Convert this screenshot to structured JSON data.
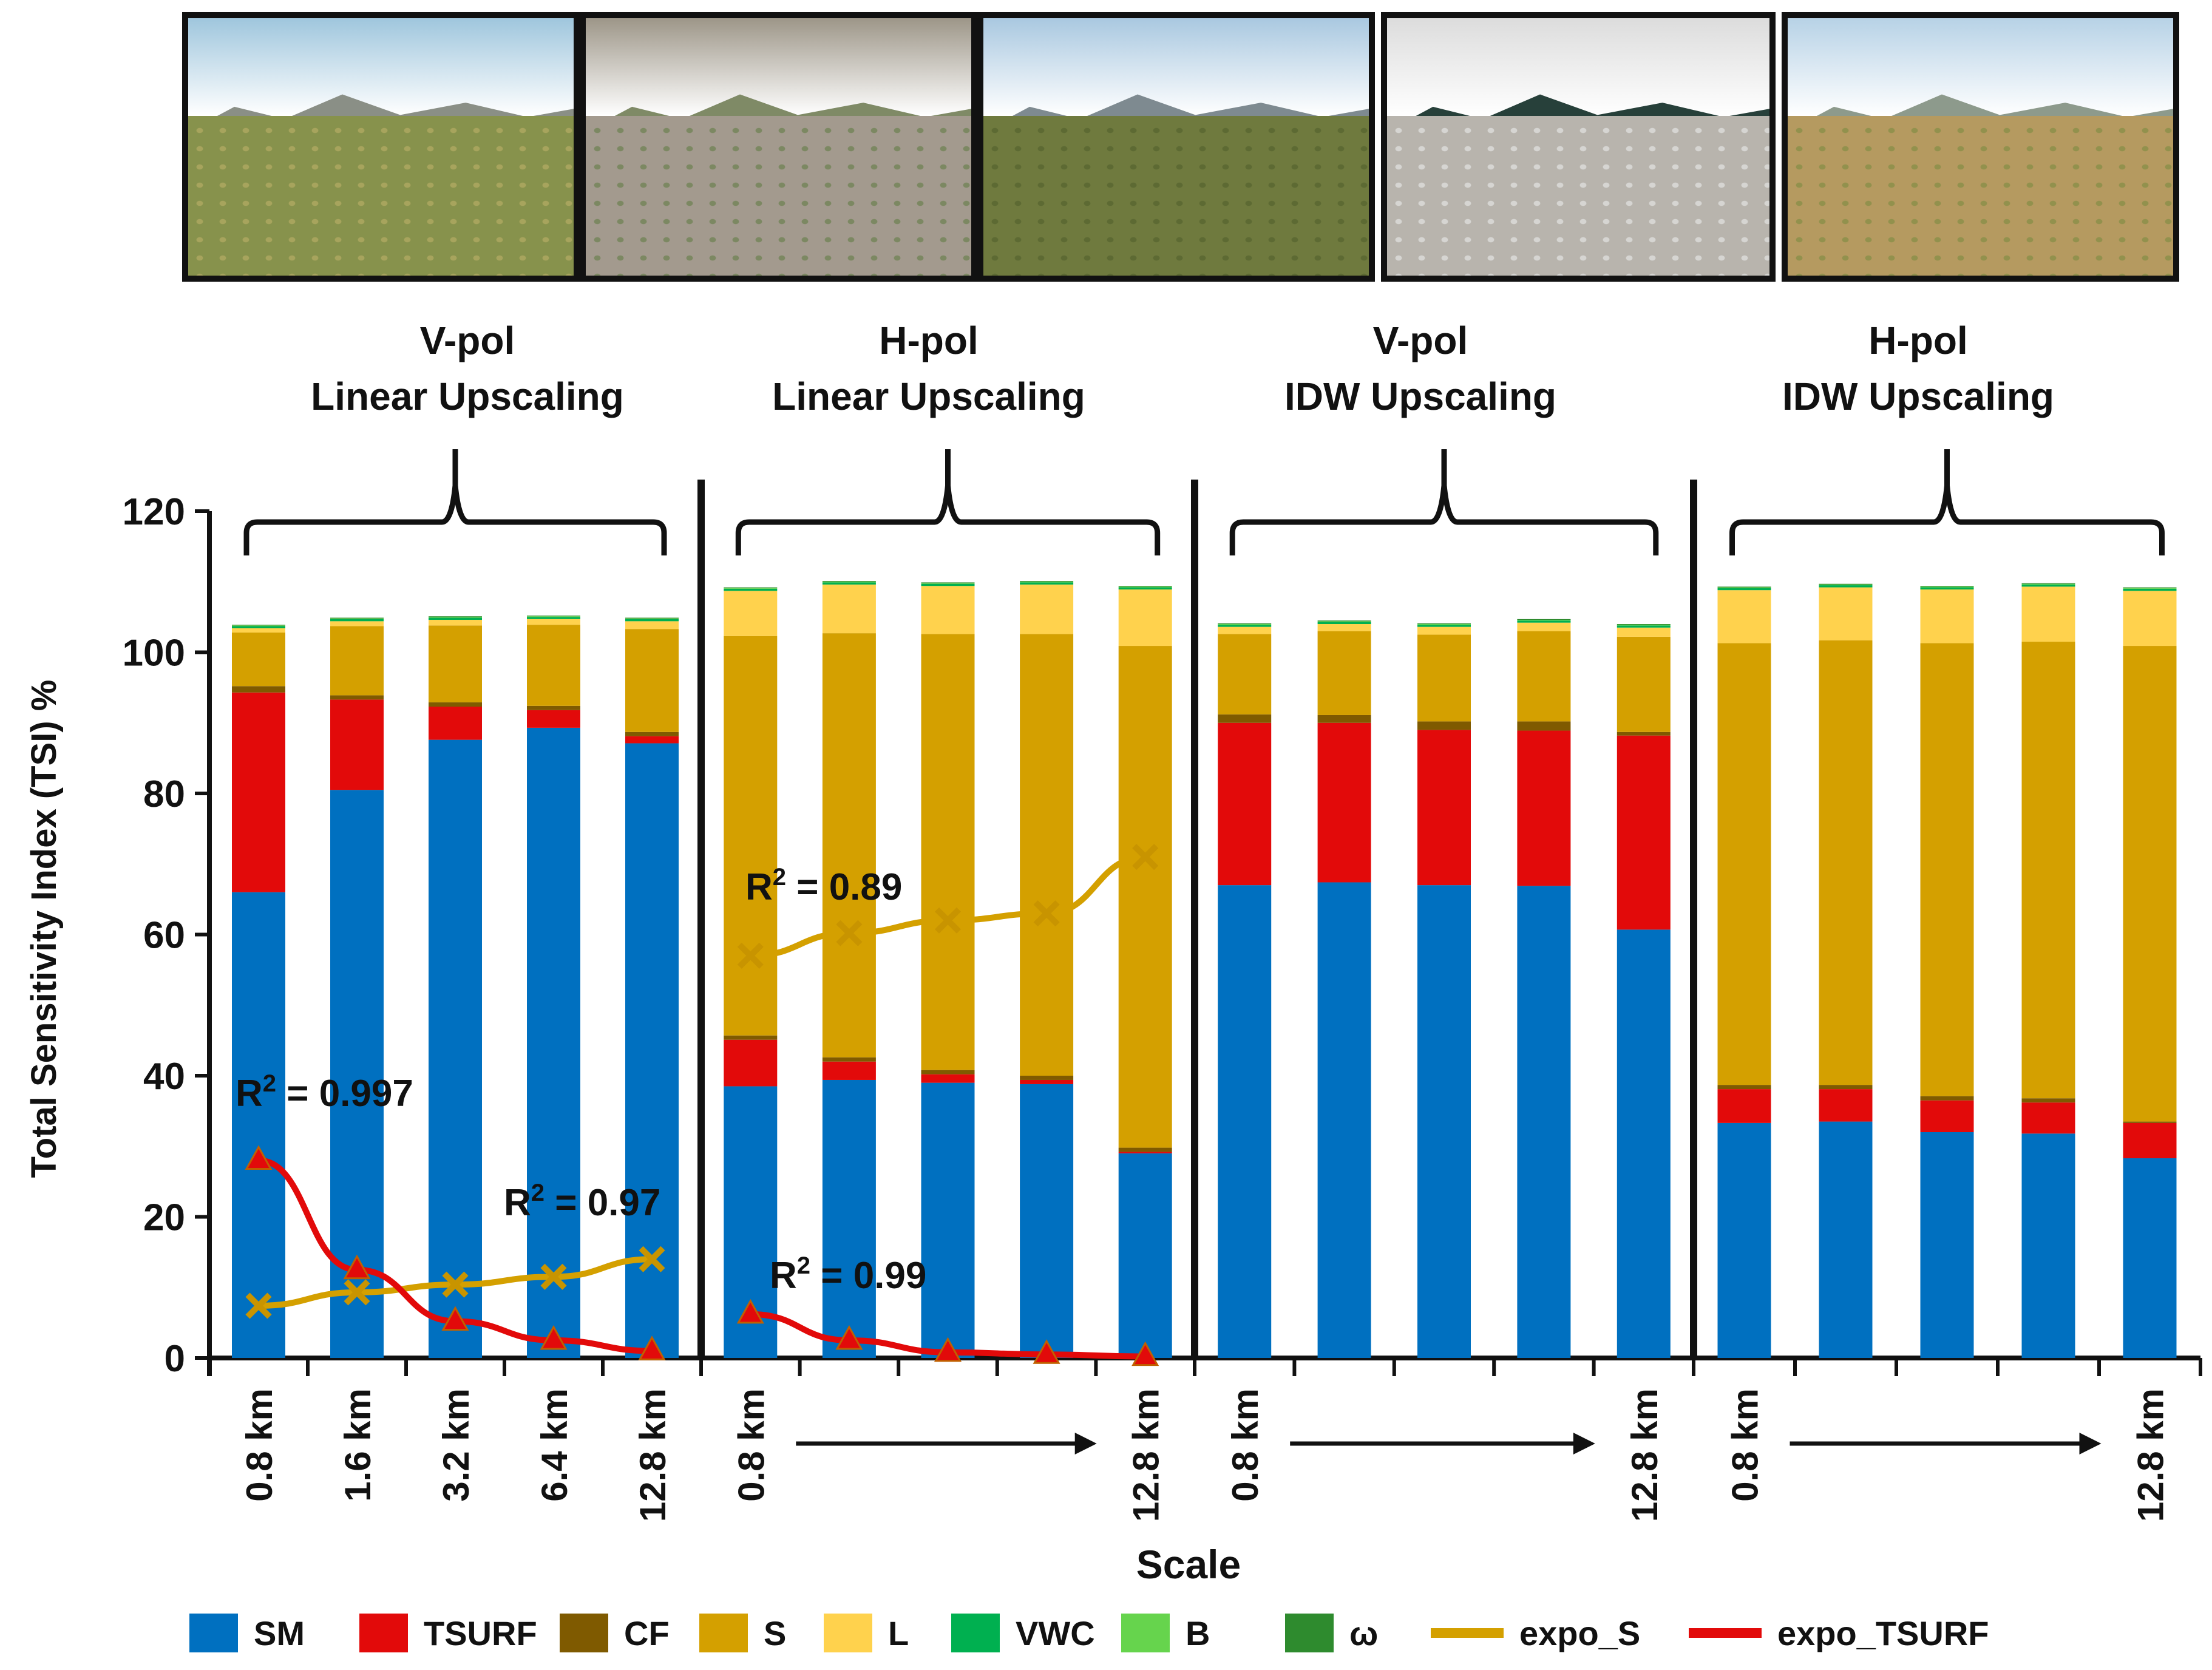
{
  "photos": [
    {
      "name": "saguaro-desert-photo",
      "sky": "#9fc6dd",
      "ridge": "#8a8f86",
      "ground": "#87924c",
      "texture": "#c2b26a"
    },
    {
      "name": "rocky-ground-photo",
      "sky": "#9d9688",
      "ridge": "#7f8a66",
      "ground": "#a39a8e",
      "texture": "#5d7a3e"
    },
    {
      "name": "shrubland-valley-photo",
      "sky": "#a9c8e0",
      "ridge": "#7e8a90",
      "ground": "#6f7a3e",
      "texture": "#4f5c2a"
    },
    {
      "name": "radiometer-instrument-photo",
      "sky": "#dcdcdc",
      "ridge": "#27403a",
      "ground": "#b8b4ad",
      "texture": "#eef0f0"
    },
    {
      "name": "grassland-photo",
      "sky": "#b7d2e6",
      "ridge": "#8d9a8c",
      "ground": "#b59a60",
      "texture": "#76893e"
    }
  ],
  "panels": [
    {
      "line1": "V-pol",
      "line2": "Linear Upscaling"
    },
    {
      "line1": "H-pol",
      "line2": "Linear Upscaling"
    },
    {
      "line1": "V-pol",
      "line2": "IDW Upscaling"
    },
    {
      "line1": "H-pol",
      "line2": "IDW Upscaling"
    }
  ],
  "chart_data": {
    "type": "bar",
    "stacked": true,
    "ylabel": "Total Sensitivity Index (TSI) %",
    "xlabel": "Scale",
    "ylim": [
      0,
      120
    ],
    "yticks": [
      0,
      20,
      40,
      60,
      80,
      100,
      120
    ],
    "component_order": [
      "SM",
      "TSURF",
      "CF",
      "S",
      "L",
      "VWC",
      "B",
      "ω"
    ],
    "colors": {
      "SM": "#0070c0",
      "TSURF": "#e20a0a",
      "CF": "#7f5a00",
      "S": "#d4a000",
      "L": "#ffd24d",
      "VWC": "#00b050",
      "B": "#66d44d",
      "ω": "#2e8b2e",
      "expo_S": "#d4a000",
      "expo_TSURF": "#e20a0a"
    },
    "groups": [
      {
        "title": "V-pol Linear Upscaling",
        "bars": [
          {
            "scale": "0.8 km",
            "SM": 66.0,
            "TSURF": 28.3,
            "CF": 0.9,
            "S": 7.6,
            "L": 0.6,
            "VWC": 0.3,
            "B": 0.1,
            "ω": 0.1
          },
          {
            "scale": "1.6 km",
            "SM": 80.5,
            "TSURF": 12.8,
            "CF": 0.6,
            "S": 9.8,
            "L": 0.7,
            "VWC": 0.3,
            "B": 0.1,
            "ω": 0.1
          },
          {
            "scale": "3.2 km",
            "SM": 87.6,
            "TSURF": 4.7,
            "CF": 0.6,
            "S": 10.9,
            "L": 0.8,
            "VWC": 0.3,
            "B": 0.1,
            "ω": 0.1
          },
          {
            "scale": "6.4 km",
            "SM": 89.3,
            "TSURF": 2.5,
            "CF": 0.6,
            "S": 11.5,
            "L": 0.8,
            "VWC": 0.3,
            "B": 0.1,
            "ω": 0.1
          },
          {
            "scale": "12.8 km",
            "SM": 87.1,
            "TSURF": 1.0,
            "CF": 0.6,
            "S": 14.6,
            "L": 1.1,
            "VWC": 0.3,
            "B": 0.1,
            "ω": 0.1
          }
        ],
        "x_labels": [
          "0.8 km",
          "1.6 km",
          "3.2 km",
          "6.4 km",
          "12.8 km"
        ],
        "arrow": false,
        "trends": [
          {
            "name": "expo_S",
            "values": [
              7.4,
              9.3,
              10.4,
              11.5,
              14.0
            ],
            "marker": "x",
            "r2": "0.97"
          },
          {
            "name": "expo_TSURF",
            "values": [
              28.0,
              12.5,
              5.2,
              2.5,
              1.0
            ],
            "marker": "triangle",
            "r2": "0.997"
          }
        ]
      },
      {
        "title": "H-pol Linear Upscaling",
        "bars": [
          {
            "scale": "0.8 km",
            "SM": 38.5,
            "TSURF": 6.6,
            "CF": 0.6,
            "S": 56.6,
            "L": 6.4,
            "VWC": 0.3,
            "B": 0.1,
            "ω": 0.1
          },
          {
            "scale": "",
            "SM": 39.4,
            "TSURF": 2.6,
            "CF": 0.6,
            "S": 60.1,
            "L": 6.9,
            "VWC": 0.3,
            "B": 0.1,
            "ω": 0.1
          },
          {
            "scale": "",
            "SM": 39.0,
            "TSURF": 1.2,
            "CF": 0.6,
            "S": 61.8,
            "L": 6.8,
            "VWC": 0.3,
            "B": 0.1,
            "ω": 0.1
          },
          {
            "scale": "",
            "SM": 38.8,
            "TSURF": 0.6,
            "CF": 0.6,
            "S": 62.6,
            "L": 7.0,
            "VWC": 0.3,
            "B": 0.1,
            "ω": 0.1
          },
          {
            "scale": "12.8 km",
            "SM": 29.0,
            "TSURF": 0.2,
            "CF": 0.6,
            "S": 71.1,
            "L": 8.0,
            "VWC": 0.3,
            "B": 0.1,
            "ω": 0.1
          }
        ],
        "x_labels": [
          "0.8 km",
          "12.8 km"
        ],
        "arrow": true,
        "trends": [
          {
            "name": "expo_S",
            "values": [
              57.0,
              60.2,
              62.0,
              63.0,
              71.0
            ],
            "marker": "x",
            "r2": "0.89"
          },
          {
            "name": "expo_TSURF",
            "values": [
              6.2,
              2.5,
              0.8,
              0.5,
              0.2
            ],
            "marker": "triangle",
            "r2": "0.99"
          }
        ]
      },
      {
        "title": "V-pol IDW Upscaling",
        "bars": [
          {
            "scale": "0.8 km",
            "SM": 67.0,
            "TSURF": 23.0,
            "CF": 1.2,
            "S": 11.4,
            "L": 1.0,
            "VWC": 0.3,
            "B": 0.1,
            "ω": 0.1
          },
          {
            "scale": "",
            "SM": 67.4,
            "TSURF": 22.6,
            "CF": 1.1,
            "S": 11.9,
            "L": 1.0,
            "VWC": 0.3,
            "B": 0.1,
            "ω": 0.1
          },
          {
            "scale": "",
            "SM": 67.0,
            "TSURF": 22.0,
            "CF": 1.2,
            "S": 12.3,
            "L": 1.1,
            "VWC": 0.3,
            "B": 0.1,
            "ω": 0.1
          },
          {
            "scale": "",
            "SM": 66.9,
            "TSURF": 22.0,
            "CF": 1.3,
            "S": 12.8,
            "L": 1.2,
            "VWC": 0.3,
            "B": 0.1,
            "ω": 0.1
          },
          {
            "scale": "12.8 km",
            "SM": 60.7,
            "TSURF": 27.5,
            "CF": 0.5,
            "S": 13.5,
            "L": 1.3,
            "VWC": 0.3,
            "B": 0.1,
            "ω": 0.1
          }
        ],
        "x_labels": [
          "0.8 km",
          "12.8 km"
        ],
        "arrow": true,
        "trends": []
      },
      {
        "title": "H-pol IDW Upscaling",
        "bars": [
          {
            "scale": "0.8 km",
            "SM": 33.3,
            "TSURF": 4.8,
            "CF": 0.6,
            "S": 62.6,
            "L": 7.5,
            "VWC": 0.3,
            "B": 0.1,
            "ω": 0.1
          },
          {
            "scale": "",
            "SM": 33.5,
            "TSURF": 4.6,
            "CF": 0.6,
            "S": 63.0,
            "L": 7.5,
            "VWC": 0.3,
            "B": 0.1,
            "ω": 0.1
          },
          {
            "scale": "",
            "SM": 32.0,
            "TSURF": 4.5,
            "CF": 0.6,
            "S": 64.2,
            "L": 7.6,
            "VWC": 0.3,
            "B": 0.1,
            "ω": 0.1
          },
          {
            "scale": "",
            "SM": 31.8,
            "TSURF": 4.4,
            "CF": 0.6,
            "S": 64.7,
            "L": 7.8,
            "VWC": 0.3,
            "B": 0.1,
            "ω": 0.1
          },
          {
            "scale": "12.8 km",
            "SM": 28.3,
            "TSURF": 5.0,
            "CF": 0.2,
            "S": 67.4,
            "L": 7.8,
            "VWC": 0.3,
            "B": 0.1,
            "ω": 0.1
          }
        ],
        "x_labels": [
          "0.8 km",
          "12.8 km"
        ],
        "arrow": true,
        "trends": []
      }
    ],
    "legend": [
      {
        "label": "SM",
        "kind": "box",
        "key": "SM"
      },
      {
        "label": "TSURF",
        "kind": "box",
        "key": "TSURF"
      },
      {
        "label": "CF",
        "kind": "box",
        "key": "CF"
      },
      {
        "label": "S",
        "kind": "box",
        "key": "S"
      },
      {
        "label": "L",
        "kind": "box",
        "key": "L"
      },
      {
        "label": "VWC",
        "kind": "box",
        "key": "VWC"
      },
      {
        "label": "B",
        "kind": "box",
        "key": "B"
      },
      {
        "label": "ω",
        "kind": "box",
        "key": "ω"
      },
      {
        "label": "expo_S",
        "kind": "line",
        "key": "expo_S"
      },
      {
        "label": "expo_TSURF",
        "kind": "line",
        "key": "expo_TSURF"
      }
    ]
  }
}
